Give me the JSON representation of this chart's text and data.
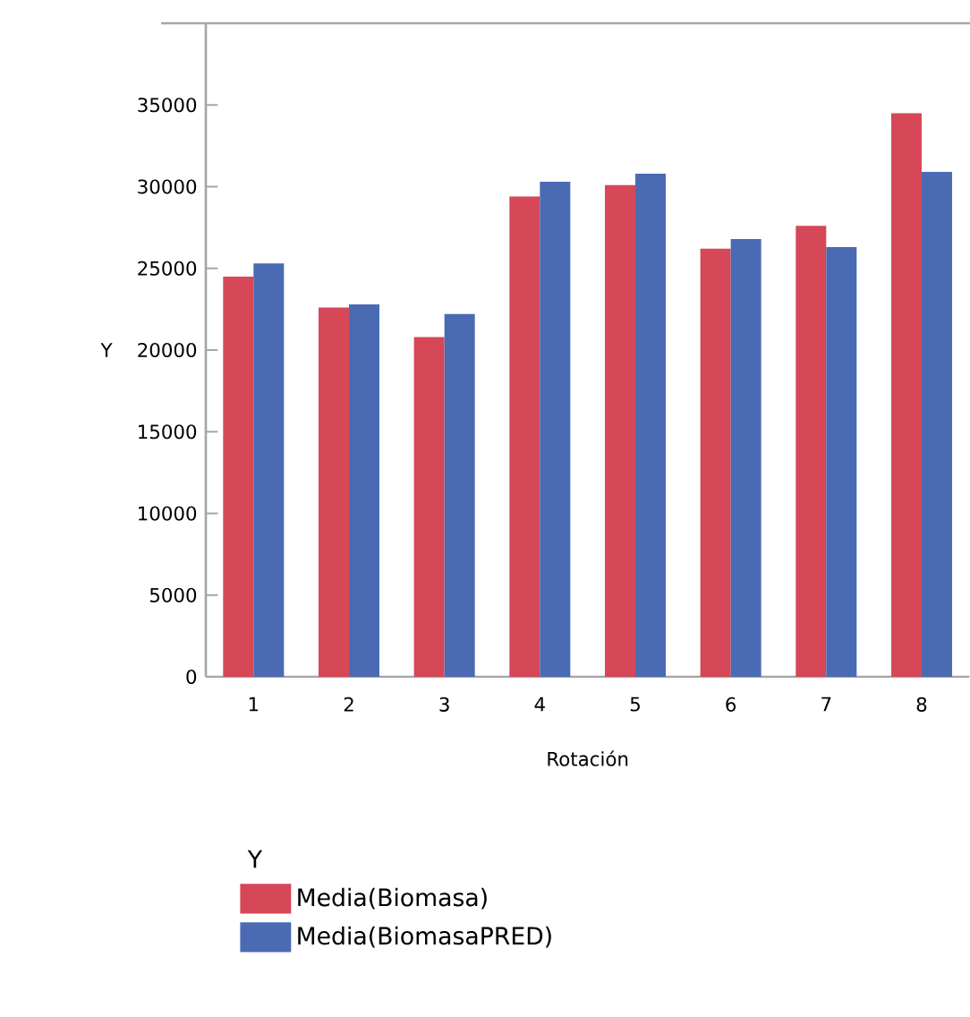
{
  "chart_data": {
    "type": "bar",
    "xlabel": "Rotación",
    "ylabel": "Y",
    "legend_title": "Y",
    "categories": [
      "1",
      "2",
      "3",
      "4",
      "5",
      "6",
      "7",
      "8"
    ],
    "series": [
      {
        "name": "Media(Biomasa)",
        "color": "#d64757",
        "values": [
          24500,
          22600,
          20800,
          29400,
          30100,
          26200,
          27600,
          34500
        ]
      },
      {
        "name": "Media(BiomasaPRED)",
        "color": "#4a6bb3",
        "values": [
          25300,
          22800,
          22200,
          30300,
          30800,
          26800,
          26300,
          30900
        ]
      }
    ],
    "ylim": [
      0,
      40000
    ],
    "yticks": [
      0,
      5000,
      10000,
      15000,
      20000,
      25000,
      30000,
      35000
    ],
    "grid": false,
    "legend": "bottom"
  }
}
